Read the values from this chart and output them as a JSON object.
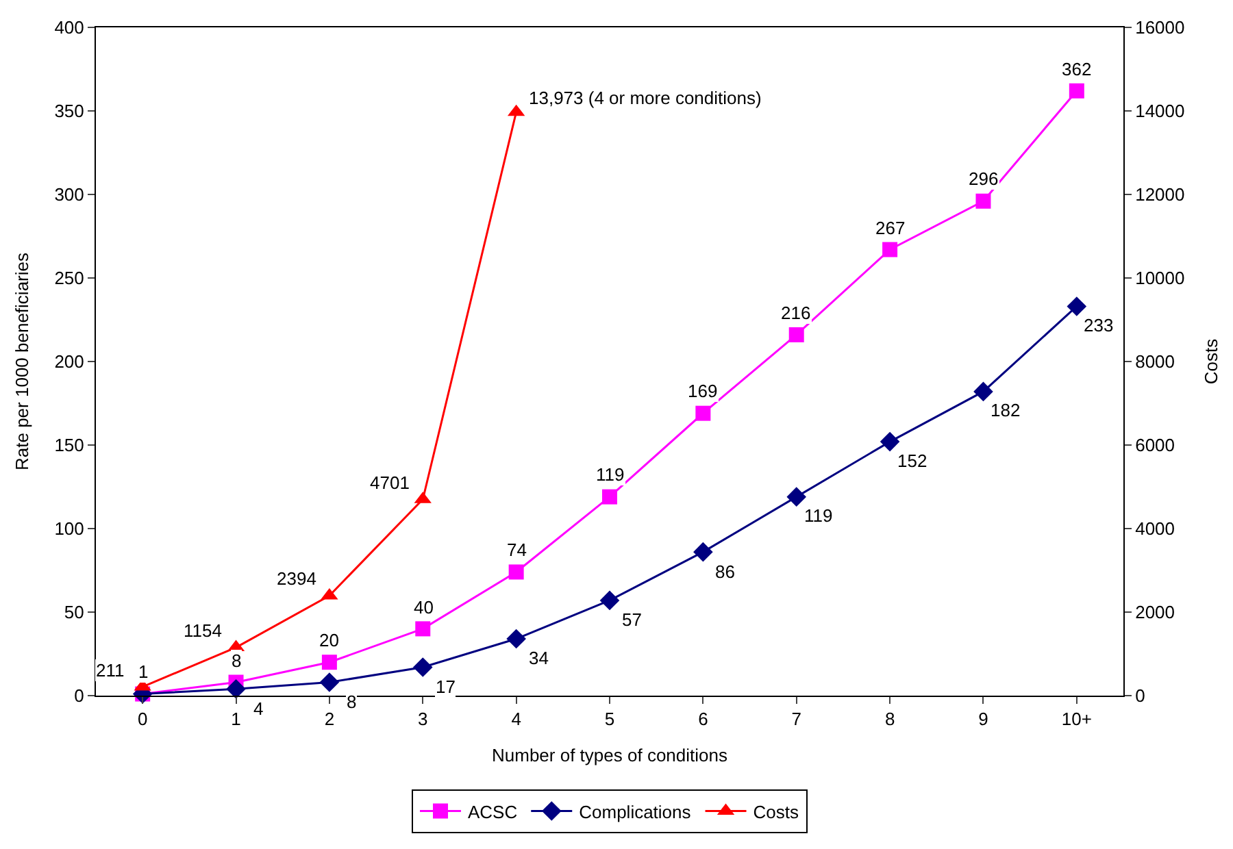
{
  "chart_data": {
    "type": "line",
    "xlabel": "Number of types of conditions",
    "ylabel": "Rate per 1000 beneficiaries",
    "y2label": "Costs",
    "categories": [
      "0",
      "1",
      "2",
      "3",
      "4",
      "5",
      "6",
      "7",
      "8",
      "9",
      "10+"
    ],
    "ylim": [
      0,
      400
    ],
    "yticks": [
      0,
      50,
      100,
      150,
      200,
      250,
      300,
      350,
      400
    ],
    "y2lim": [
      0,
      16000
    ],
    "y2ticks": [
      0,
      2000,
      4000,
      6000,
      8000,
      10000,
      12000,
      14000,
      16000
    ],
    "legend": "bottom",
    "series": [
      {
        "name": "ACSC",
        "color": "#ff00ff",
        "marker": "square",
        "values": [
          1,
          8,
          20,
          40,
          74,
          119,
          169,
          216,
          267,
          296,
          362
        ],
        "value_labels": [
          "1",
          "8",
          "20",
          "40",
          "74",
          "119",
          "169",
          "216",
          "267",
          "296",
          "362"
        ]
      },
      {
        "name": "Complications",
        "color": "#000080",
        "marker": "diamond",
        "values": [
          1,
          4,
          8,
          17,
          34,
          57,
          86,
          119,
          152,
          182,
          233
        ],
        "value_labels": [
          null,
          "4",
          "8",
          "17",
          "34",
          "57",
          "86",
          "119",
          "152",
          "182",
          "233"
        ]
      },
      {
        "name": "Costs",
        "color": "#ff0000",
        "marker": "triangle",
        "axis": "y2",
        "values": [
          211,
          1154,
          2394,
          4701,
          13973,
          null,
          null,
          null,
          null,
          null,
          null
        ],
        "value_labels": [
          "211",
          "1154",
          "2394",
          "4701",
          "13,973 (4 or more conditions)",
          null,
          null,
          null,
          null,
          null,
          null
        ]
      }
    ]
  }
}
